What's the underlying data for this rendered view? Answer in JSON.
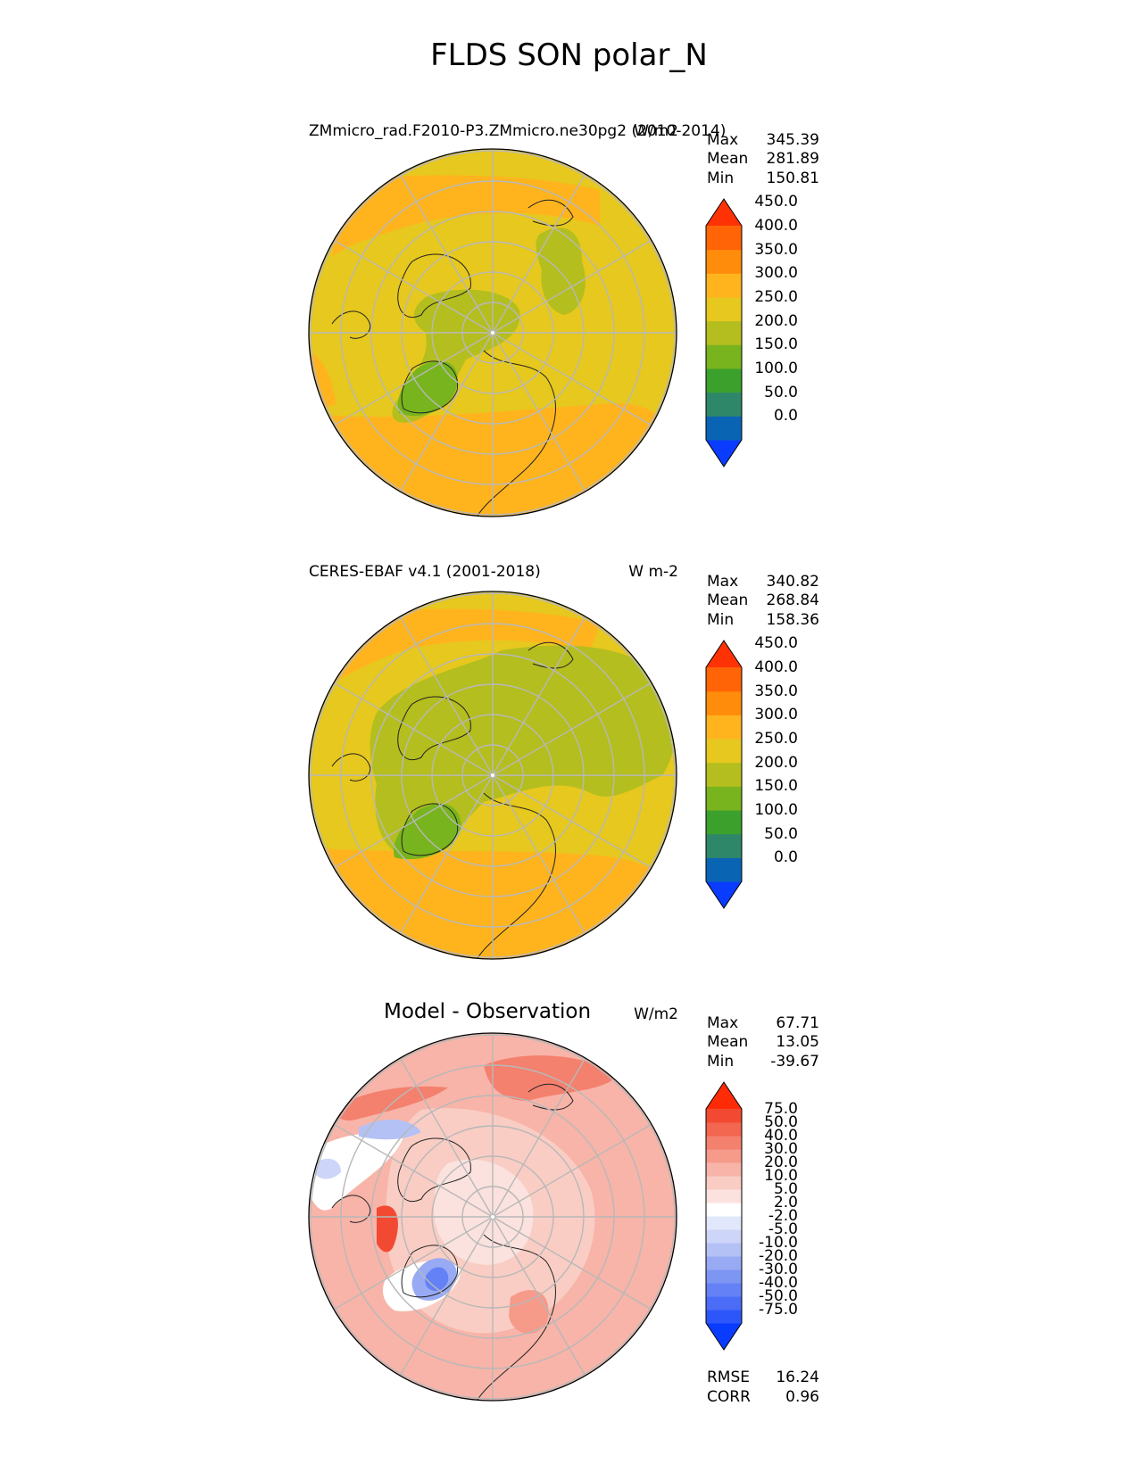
{
  "title": "FLDS SON polar_N",
  "panels": [
    {
      "id": "test",
      "title": "ZMmicro_rad.F2010-P3.ZMmicro.ne30pg2 (2010-2014)",
      "units": "W/m2",
      "stats": [
        {
          "label": "Max",
          "value": "345.39"
        },
        {
          "label": "Mean",
          "value": "281.89"
        },
        {
          "label": "Min",
          "value": "150.81"
        }
      ],
      "colorbar": {
        "ticks": [
          "450.0",
          "400.0",
          "350.0",
          "300.0",
          "250.0",
          "200.0",
          "150.0",
          "100.0",
          "50.0",
          "0.0"
        ],
        "colors": [
          "#0a3cff",
          "#0a64b4",
          "#2e8768",
          "#3ca02d",
          "#78b41e",
          "#b4be1e",
          "#e6c81e",
          "#ffb41e",
          "#ff8c0a",
          "#ff6406",
          "#ff3206"
        ]
      }
    },
    {
      "id": "reference",
      "title": "CERES-EBAF v4.1 (2001-2018)",
      "units": "W m-2",
      "stats": [
        {
          "label": "Max",
          "value": "340.82"
        },
        {
          "label": "Mean",
          "value": "268.84"
        },
        {
          "label": "Min",
          "value": "158.36"
        }
      ],
      "colorbar": {
        "ticks": [
          "450.0",
          "400.0",
          "350.0",
          "300.0",
          "250.0",
          "200.0",
          "150.0",
          "100.0",
          "50.0",
          "0.0"
        ],
        "colors": [
          "#0a3cff",
          "#0a64b4",
          "#2e8768",
          "#3ca02d",
          "#78b41e",
          "#b4be1e",
          "#e6c81e",
          "#ffb41e",
          "#ff8c0a",
          "#ff6406",
          "#ff3206"
        ]
      }
    },
    {
      "id": "diff",
      "title": "Model - Observation",
      "units": "W/m2",
      "stats": [
        {
          "label": "Max",
          "value": "67.71"
        },
        {
          "label": "Mean",
          "value": "13.05"
        },
        {
          "label": "Min",
          "value": "-39.67"
        }
      ],
      "colorbar": {
        "ticks": [
          "75.0",
          "50.0",
          "40.0",
          "30.0",
          "20.0",
          "10.0",
          "5.0",
          "2.0",
          "-2.0",
          "-5.0",
          "-10.0",
          "-20.0",
          "-30.0",
          "-40.0",
          "-50.0",
          "-75.0"
        ],
        "colors": [
          "#0a3cff",
          "#2d56fa",
          "#4a6cf7",
          "#6482f5",
          "#7e96f3",
          "#98aaf3",
          "#b4c1f5",
          "#cdd6f8",
          "#e2e8fb",
          "#ffffff",
          "#fbe2de",
          "#f9cdc4",
          "#f8b4a8",
          "#f69a8a",
          "#f4806e",
          "#f36650",
          "#f24a32",
          "#ff2a06"
        ]
      },
      "footer_stats": [
        {
          "label": "RMSE",
          "value": "16.24"
        },
        {
          "label": "CORR",
          "value": "0.96"
        }
      ]
    }
  ]
}
